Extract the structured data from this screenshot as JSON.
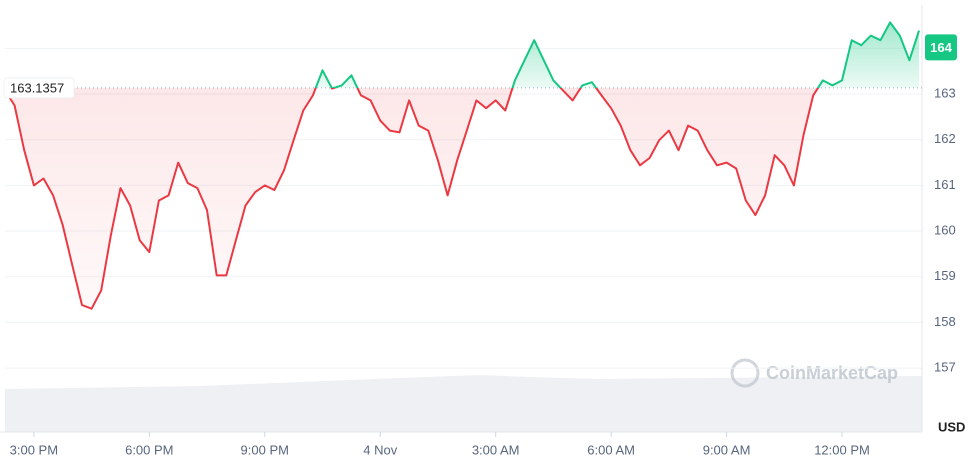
{
  "chart_data": {
    "type": "line",
    "categories": [
      null,
      null,
      null,
      "3:00 PM",
      null,
      null,
      null,
      null,
      null,
      null,
      null,
      null,
      null,
      null,
      null,
      "6:00 PM",
      null,
      null,
      null,
      null,
      null,
      null,
      null,
      null,
      null,
      null,
      null,
      "9:00 PM",
      null,
      null,
      null,
      null,
      null,
      null,
      null,
      null,
      null,
      null,
      null,
      "4 Nov",
      null,
      null,
      null,
      null,
      null,
      null,
      null,
      null,
      null,
      null,
      null,
      "3:00 AM",
      null,
      null,
      null,
      null,
      null,
      null,
      null,
      null,
      null,
      null,
      null,
      "6:00 AM",
      null,
      null,
      null,
      null,
      null,
      null,
      null,
      null,
      null,
      null,
      null,
      "9:00 AM",
      null,
      null,
      null,
      null,
      null,
      null,
      null,
      null,
      null,
      null,
      null,
      "12:00 PM",
      null,
      null,
      null,
      null,
      null,
      null,
      null,
      null
    ],
    "series": [
      {
        "values": [
          163.08,
          162.75,
          161.77,
          161.0,
          161.15,
          160.78,
          160.13,
          159.25,
          158.38,
          158.3,
          158.7,
          159.9,
          160.94,
          160.56,
          159.8,
          159.54,
          160.67,
          160.78,
          161.5,
          161.05,
          160.94,
          160.46,
          159.03,
          159.03,
          159.8,
          160.56,
          160.85,
          161.0,
          160.9,
          161.33,
          161.99,
          162.64,
          162.97,
          163.52,
          163.12,
          163.19,
          163.41,
          162.97,
          162.86,
          162.42,
          162.2,
          162.16,
          162.86,
          162.31,
          162.2,
          161.55,
          160.78,
          161.55,
          162.2,
          162.86,
          162.69,
          162.86,
          162.64,
          163.3,
          163.74,
          164.18,
          163.74,
          163.3,
          163.08,
          162.86,
          163.19,
          163.26,
          162.97,
          162.69,
          162.31,
          161.77,
          161.44,
          161.6,
          161.99,
          162.2,
          161.77,
          162.31,
          162.2,
          161.77,
          161.44,
          161.5,
          161.37,
          160.67,
          160.35,
          160.78,
          161.66,
          161.44,
          161.0,
          162.1,
          162.97,
          163.3,
          163.19,
          163.3,
          164.18,
          164.07,
          164.28,
          164.18,
          164.57,
          164.28,
          163.74,
          164.39
        ]
      }
    ],
    "up_color": "#16c784",
    "down_color": "#ea3943",
    "baseline": 163.1357,
    "current_price": 164,
    "ylim": [
      155.6,
      164.95
    ],
    "yticks": [
      157,
      158,
      159,
      160,
      161,
      162,
      163,
      164
    ],
    "y_axis_label": "USD",
    "watermark": "CoinMarketCap",
    "grid": true
  }
}
